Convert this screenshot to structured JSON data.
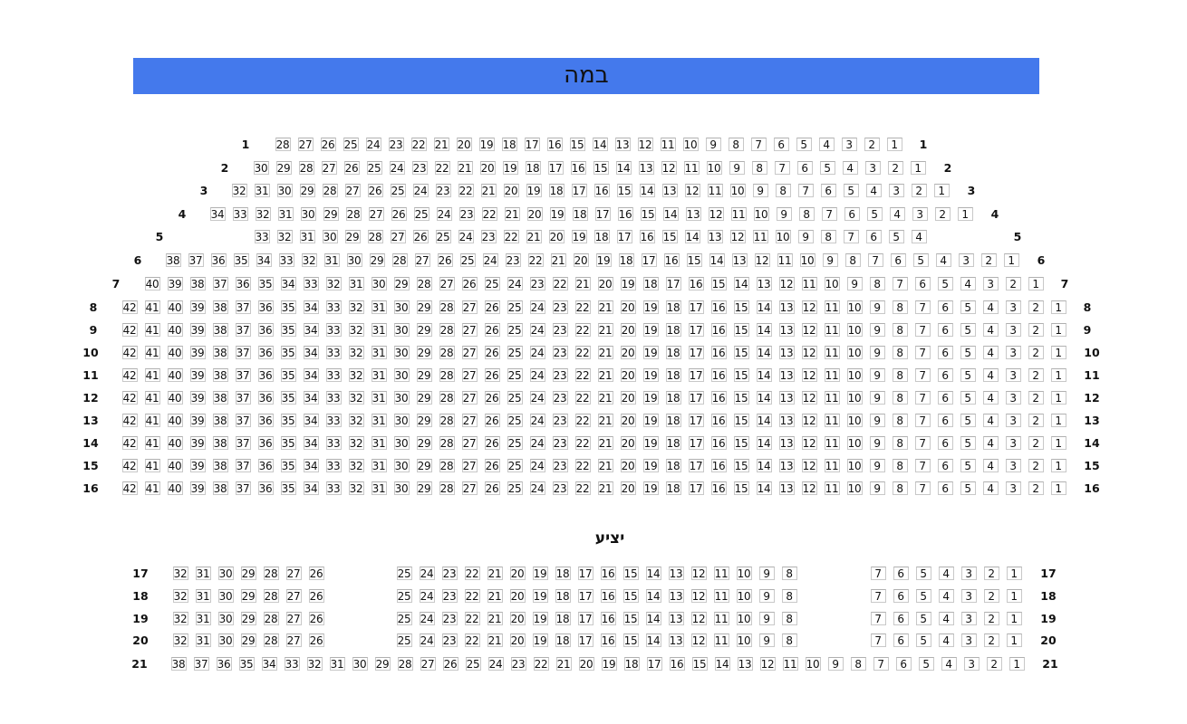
{
  "stage_label": "במה",
  "balcony_label": "יציע",
  "colors": {
    "stage": "#4479ec",
    "seat_border": "#c8c8c8"
  },
  "rows": [
    {
      "label": "1",
      "segments": [
        {
          "from": 1,
          "to": 28
        }
      ]
    },
    {
      "label": "2",
      "segments": [
        {
          "from": 1,
          "to": 30
        }
      ]
    },
    {
      "label": "3",
      "segments": [
        {
          "from": 1,
          "to": 32
        }
      ]
    },
    {
      "label": "4",
      "segments": [
        {
          "from": 1,
          "to": 34
        }
      ]
    },
    {
      "label": "5",
      "segments": [
        {
          "from": 4,
          "to": 33
        }
      ]
    },
    {
      "label": "6",
      "segments": [
        {
          "from": 1,
          "to": 38
        }
      ]
    },
    {
      "label": "7",
      "segments": [
        {
          "from": 1,
          "to": 40
        }
      ]
    },
    {
      "label": "8",
      "segments": [
        {
          "from": 1,
          "to": 42
        }
      ]
    },
    {
      "label": "9",
      "segments": [
        {
          "from": 1,
          "to": 42
        }
      ]
    },
    {
      "label": "10",
      "segments": [
        {
          "from": 1,
          "to": 42
        }
      ]
    },
    {
      "label": "11",
      "segments": [
        {
          "from": 1,
          "to": 42
        }
      ]
    },
    {
      "label": "12",
      "segments": [
        {
          "from": 1,
          "to": 42
        }
      ]
    },
    {
      "label": "13",
      "segments": [
        {
          "from": 1,
          "to": 42
        }
      ]
    },
    {
      "label": "14",
      "segments": [
        {
          "from": 1,
          "to": 42
        }
      ]
    },
    {
      "label": "15",
      "segments": [
        {
          "from": 1,
          "to": 42
        }
      ]
    },
    {
      "label": "16",
      "segments": [
        {
          "from": 1,
          "to": 42
        }
      ]
    },
    {
      "label": "17",
      "segments": [
        {
          "from": 1,
          "to": 7
        },
        {
          "from": 8,
          "to": 25
        },
        {
          "from": 26,
          "to": 32
        }
      ]
    },
    {
      "label": "18",
      "segments": [
        {
          "from": 1,
          "to": 7
        },
        {
          "from": 8,
          "to": 25
        },
        {
          "from": 26,
          "to": 32
        }
      ]
    },
    {
      "label": "19",
      "segments": [
        {
          "from": 1,
          "to": 7
        },
        {
          "from": 8,
          "to": 25
        },
        {
          "from": 26,
          "to": 32
        }
      ]
    },
    {
      "label": "20",
      "segments": [
        {
          "from": 1,
          "to": 7
        },
        {
          "from": 8,
          "to": 25
        },
        {
          "from": 26,
          "to": 32
        }
      ]
    },
    {
      "label": "21",
      "segments": [
        {
          "from": 1,
          "to": 38
        }
      ]
    }
  ]
}
